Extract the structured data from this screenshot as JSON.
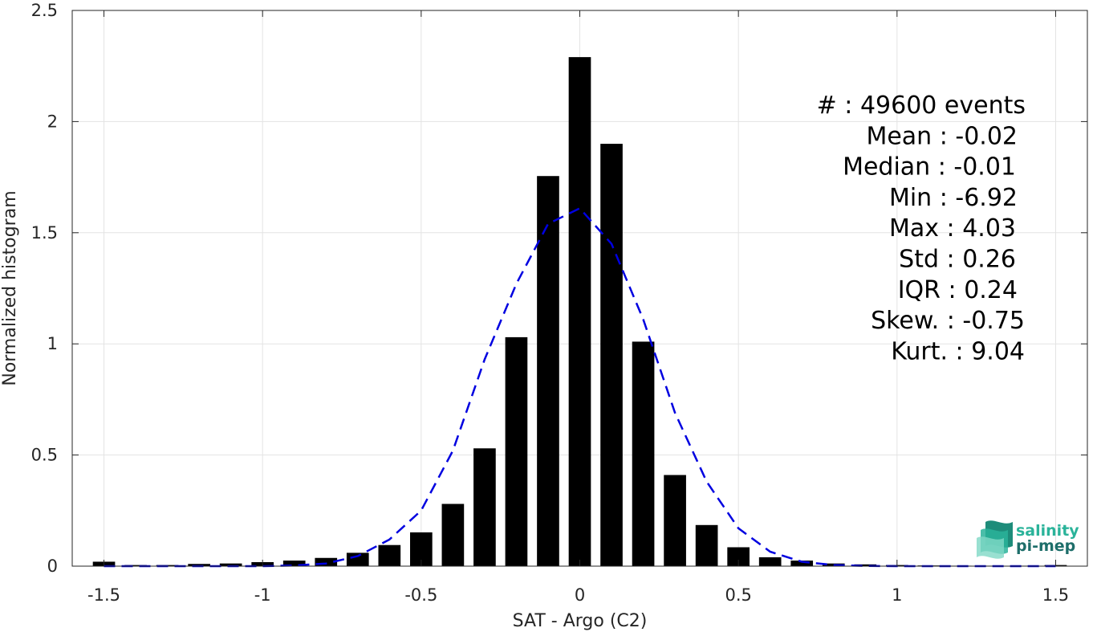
{
  "chart_data": {
    "type": "bar",
    "xlabel": "SAT - Argo (C2)",
    "ylabel": "Normalized histogram",
    "xlim": [
      -1.6,
      1.6
    ],
    "ylim": [
      0,
      2.5
    ],
    "grid": true,
    "x_ticks": [
      -1.5,
      -1,
      -0.5,
      0,
      0.5,
      1,
      1.5
    ],
    "x_tick_labels": [
      "-1.5",
      "-1",
      "-0.5",
      "0",
      "0.5",
      "1",
      "1.5"
    ],
    "y_ticks": [
      0,
      0.5,
      1,
      1.5,
      2,
      2.5
    ],
    "y_tick_labels": [
      "0",
      "0.5",
      "1",
      "1.5",
      "2",
      "2.5"
    ],
    "series": [
      {
        "type": "bar",
        "color": "#000000",
        "x": [
          -1.5,
          -1.4,
          -1.3,
          -1.2,
          -1.1,
          -1.0,
          -0.9,
          -0.8,
          -0.7,
          -0.6,
          -0.5,
          -0.4,
          -0.3,
          -0.2,
          -0.1,
          0.0,
          0.1,
          0.2,
          0.3,
          0.4,
          0.5,
          0.6,
          0.7,
          0.8,
          0.9,
          1.0,
          1.1,
          1.2,
          1.3,
          1.4,
          1.5
        ],
        "values": [
          0.02,
          0.005,
          0.005,
          0.01,
          0.012,
          0.018,
          0.025,
          0.037,
          0.06,
          0.095,
          0.152,
          0.28,
          0.53,
          1.03,
          1.755,
          2.29,
          1.9,
          1.01,
          0.41,
          0.185,
          0.085,
          0.04,
          0.025,
          0.012,
          0.008,
          0.005,
          0.003,
          0.002,
          0.002,
          0.002,
          0.005
        ]
      },
      {
        "type": "line",
        "style": "dashed",
        "color": "#0000e0",
        "x": [
          -1.5,
          -1.4,
          -1.3,
          -1.2,
          -1.1,
          -1.0,
          -0.9,
          -0.8,
          -0.7,
          -0.6,
          -0.5,
          -0.4,
          -0.3,
          -0.2,
          -0.1,
          0.0,
          0.1,
          0.2,
          0.3,
          0.4,
          0.5,
          0.6,
          0.7,
          0.8,
          0.9,
          1.0,
          1.1,
          1.2,
          1.3,
          1.4,
          1.5
        ],
        "values": [
          0.0,
          0.0,
          0.0,
          0.0,
          0.0,
          0.0,
          0.003,
          0.012,
          0.045,
          0.12,
          0.25,
          0.52,
          0.93,
          1.27,
          1.54,
          1.61,
          1.45,
          1.11,
          0.69,
          0.38,
          0.17,
          0.065,
          0.02,
          0.005,
          0.001,
          0.0,
          0.0,
          0.0,
          0.0,
          0.0,
          0.0
        ]
      }
    ]
  },
  "stats": [
    "#  : 49600 events",
    "Mean : -0.02",
    "Median : -0.01",
    "Min : -6.92",
    "Max : 4.03",
    "Std : 0.26",
    "IQR : 0.24",
    "Skew. : -0.75",
    "Kurt. : 9.04"
  ],
  "logo": {
    "line1": "salinity",
    "line2": "pi-mep",
    "color1": "#2ab39a",
    "color2": "#1e6e6a"
  }
}
